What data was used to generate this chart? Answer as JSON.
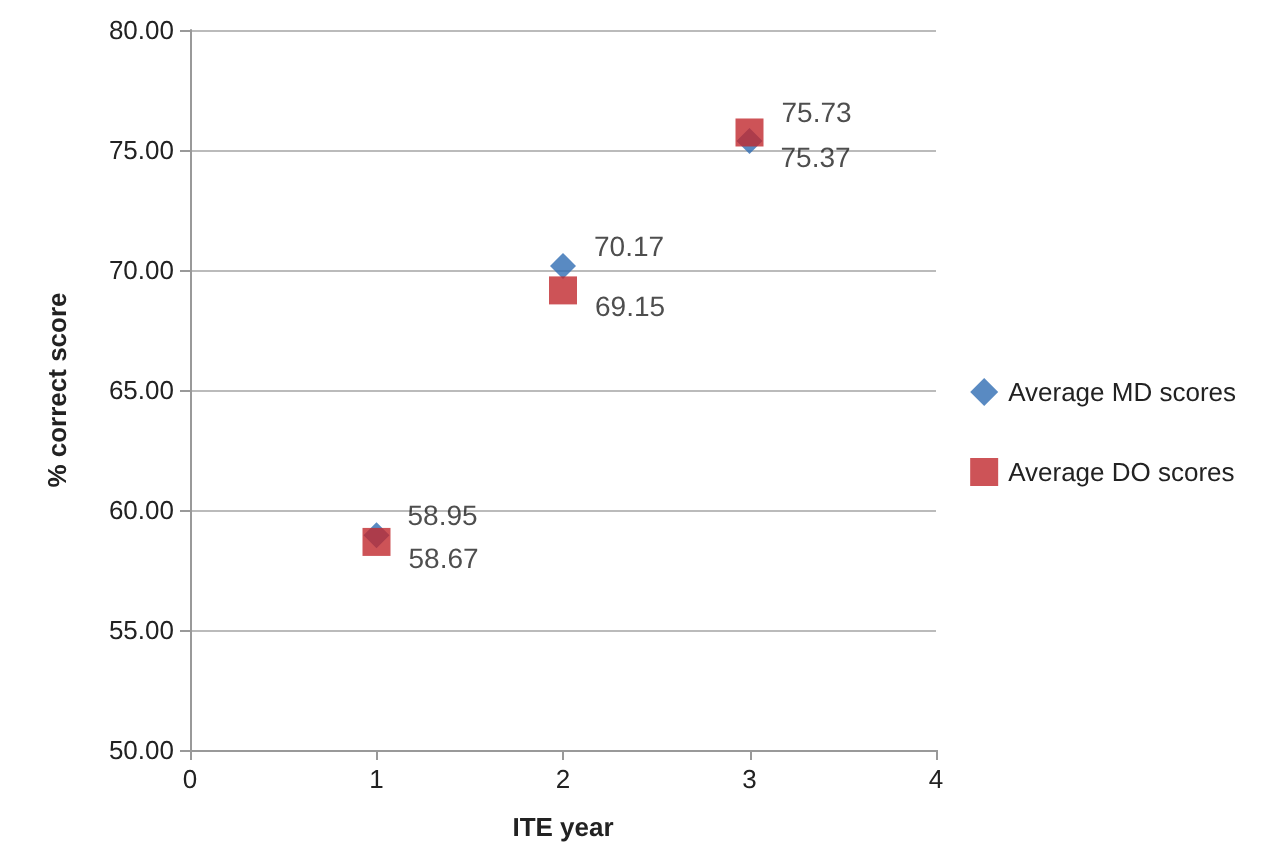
{
  "chart_data": {
    "type": "scatter",
    "xlabel": "ITE year",
    "ylabel": "% correct score",
    "x": [
      1,
      2,
      3
    ],
    "series": [
      {
        "name": "Average MD scores",
        "color": "#2f6db3",
        "marker": "diamond",
        "values": [
          58.95,
          70.17,
          75.37
        ]
      },
      {
        "name": "Average DO scores",
        "color": "#c0282d",
        "marker": "square",
        "values": [
          58.67,
          69.15,
          75.73
        ]
      }
    ],
    "xlim": [
      0,
      4
    ],
    "xticks": [
      0,
      1,
      2,
      3,
      4
    ],
    "ylim": [
      50,
      80
    ],
    "yticks": [
      {
        "value": 50,
        "label": "50.00"
      },
      {
        "value": 55,
        "label": "55.00"
      },
      {
        "value": 60,
        "label": "60.00"
      },
      {
        "value": 65,
        "label": "65.00"
      },
      {
        "value": 70,
        "label": "70.00"
      },
      {
        "value": 75,
        "label": "75.00"
      },
      {
        "value": 80,
        "label": "80.00"
      }
    ],
    "grid": "y",
    "legend": "right",
    "data_labels": true
  }
}
